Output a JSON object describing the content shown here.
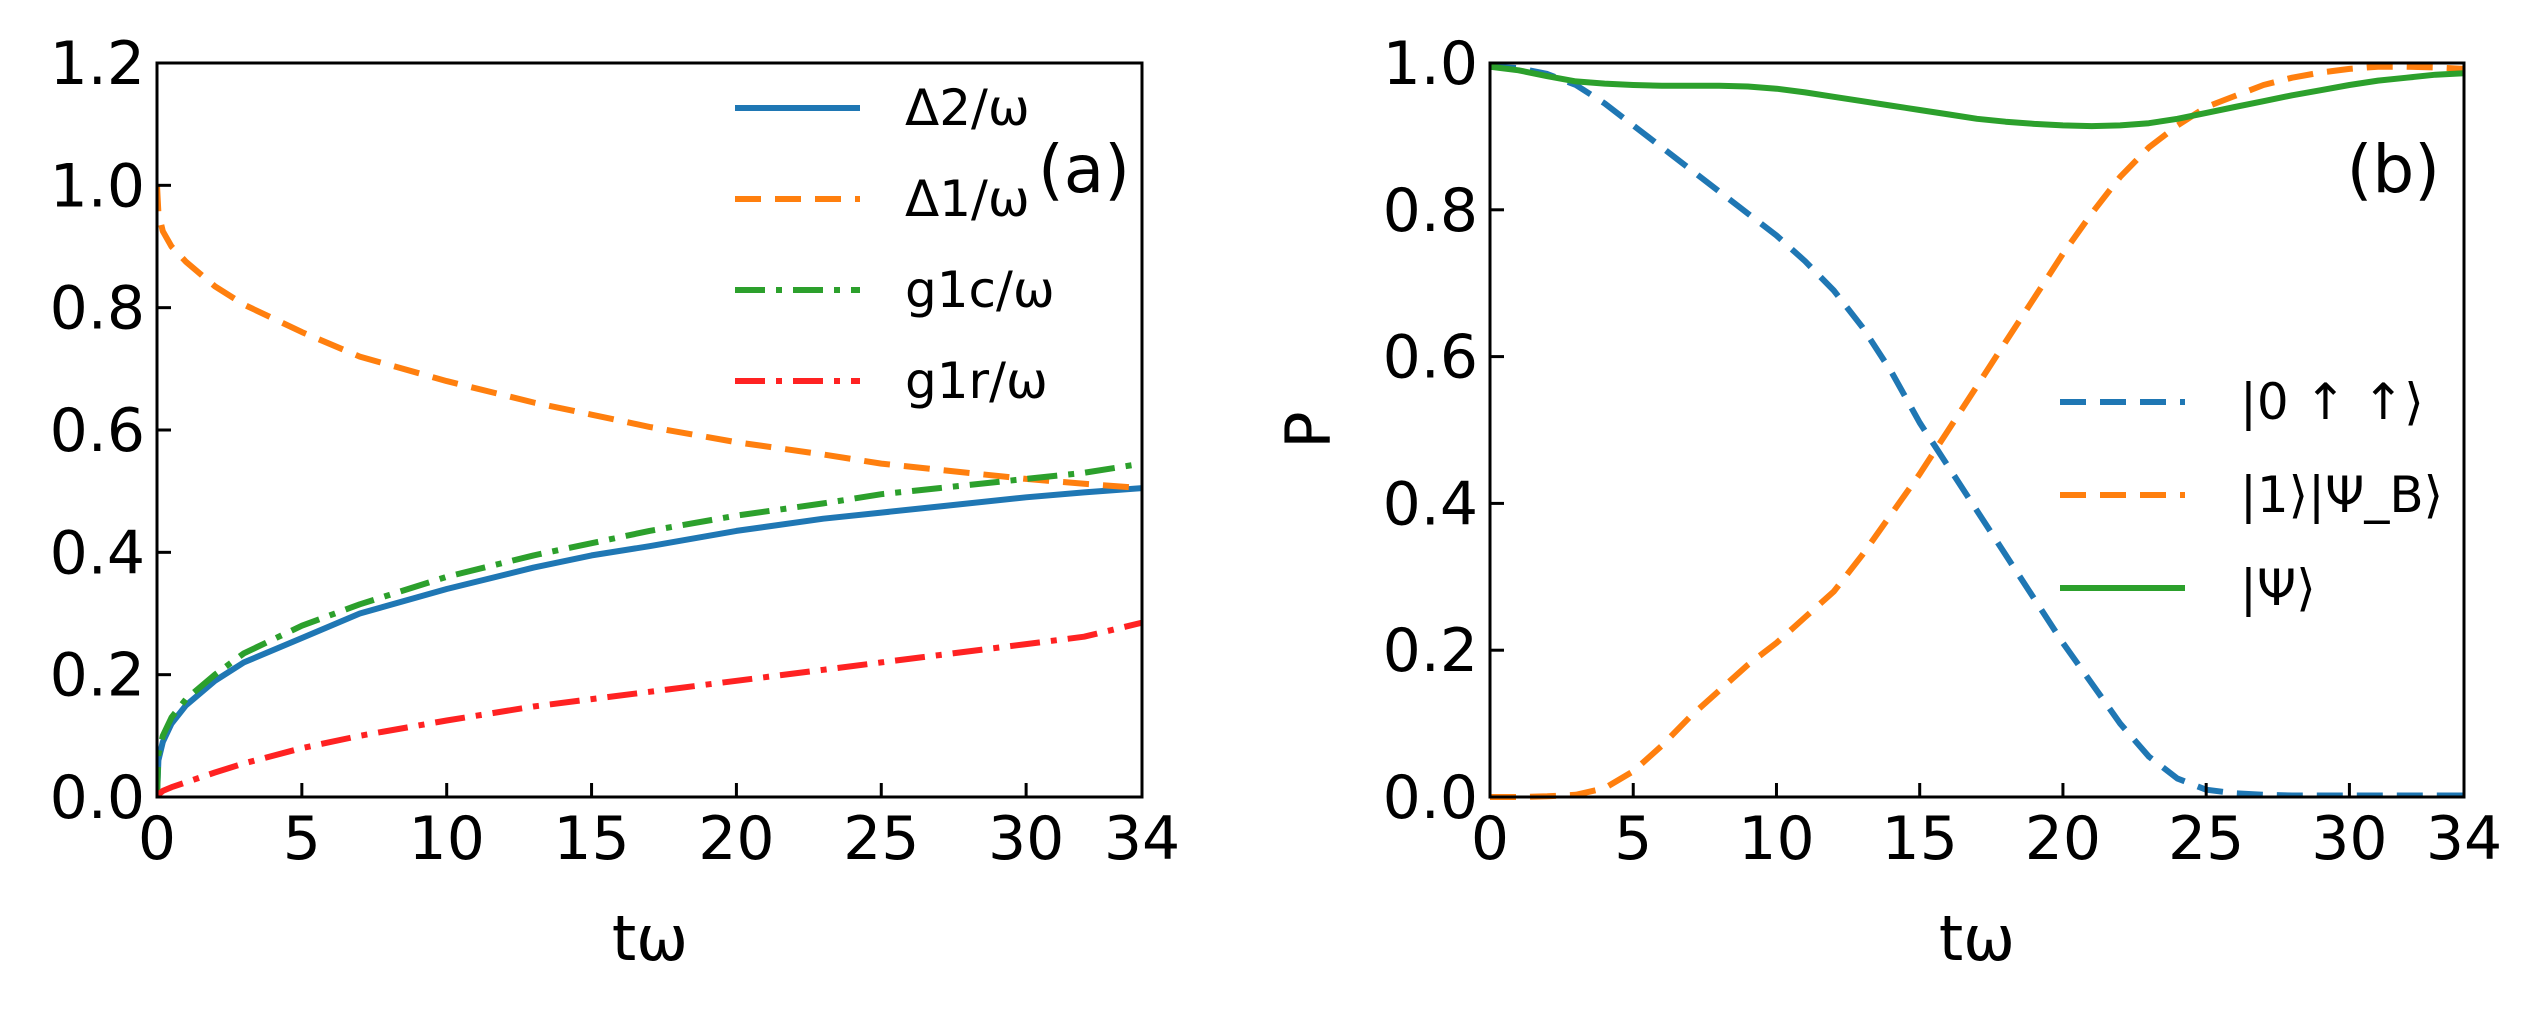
{
  "chart_data": [
    {
      "panel_label": "(a)",
      "type": "line",
      "xlabel": "tω",
      "ylabel": "",
      "xlim": [
        0,
        34
      ],
      "ylim": [
        0,
        1.2
      ],
      "xticks": [
        0,
        5,
        10,
        15,
        20,
        25,
        30,
        34
      ],
      "xtick_labels": [
        "0",
        "5",
        "10",
        "15",
        "20",
        "25",
        "30",
        "34"
      ],
      "yticks": [
        0,
        0.2,
        0.4,
        0.6,
        0.8,
        1.0,
        1.2
      ],
      "ytick_labels": [
        "0.0",
        "0.2",
        "0.4",
        "0.6",
        "0.8",
        "1.0",
        "1.2"
      ],
      "legend_position": "top-right",
      "x": [
        0,
        0.05,
        0.2,
        0.5,
        1,
        2,
        3,
        5,
        7,
        10,
        13,
        15,
        17,
        20,
        23,
        25,
        27,
        30,
        32,
        34
      ],
      "series": [
        {
          "name": "Δ2/ω",
          "color": "#1f77b4",
          "dash": "solid",
          "values": [
            0.0,
            0.06,
            0.09,
            0.12,
            0.15,
            0.19,
            0.22,
            0.26,
            0.3,
            0.34,
            0.375,
            0.395,
            0.41,
            0.435,
            0.455,
            0.465,
            0.475,
            0.49,
            0.498,
            0.505
          ]
        },
        {
          "name": "Δ1/ω",
          "color": "#ff7f0e",
          "dash": "dashed",
          "values": [
            1.0,
            0.955,
            0.925,
            0.9,
            0.875,
            0.835,
            0.805,
            0.76,
            0.72,
            0.68,
            0.645,
            0.625,
            0.605,
            0.58,
            0.56,
            0.545,
            0.535,
            0.52,
            0.512,
            0.505
          ]
        },
        {
          "name": "g1c/ω",
          "color": "#2ca02c",
          "dash": "dashdot",
          "values": [
            0.0,
            0.07,
            0.1,
            0.13,
            0.16,
            0.2,
            0.235,
            0.28,
            0.315,
            0.36,
            0.395,
            0.415,
            0.435,
            0.46,
            0.48,
            0.495,
            0.505,
            0.52,
            0.53,
            0.545
          ]
        },
        {
          "name": "g1r/ω",
          "color": "#ff2222",
          "dash": "dashdot",
          "values": [
            0.0,
            0.004,
            0.01,
            0.016,
            0.024,
            0.04,
            0.055,
            0.08,
            0.1,
            0.125,
            0.148,
            0.16,
            0.172,
            0.19,
            0.208,
            0.22,
            0.232,
            0.25,
            0.262,
            0.285
          ]
        }
      ]
    },
    {
      "panel_label": "(b)",
      "type": "line",
      "xlabel": "tω",
      "ylabel": "P",
      "xlim": [
        0,
        34
      ],
      "ylim": [
        0,
        1.0
      ],
      "xticks": [
        0,
        5,
        10,
        15,
        20,
        25,
        30,
        34
      ],
      "xtick_labels": [
        "0",
        "5",
        "10",
        "15",
        "20",
        "25",
        "30",
        "34"
      ],
      "yticks": [
        0,
        0.2,
        0.4,
        0.6,
        0.8,
        1.0
      ],
      "ytick_labels": [
        "0.0",
        "0.2",
        "0.4",
        "0.6",
        "0.8",
        "1.0"
      ],
      "legend_position": "center-right",
      "x": [
        0,
        1,
        2,
        3,
        4,
        5,
        6,
        7,
        8,
        9,
        10,
        11,
        12,
        13,
        14,
        15,
        16,
        17,
        18,
        19,
        20,
        21,
        22,
        23,
        24,
        25,
        26,
        27,
        28,
        29,
        30,
        31,
        32,
        33,
        34
      ],
      "series": [
        {
          "name": "|0 ↑ ↑⟩",
          "color": "#1f77b4",
          "dash": "dashed",
          "values": [
            0.995,
            0.993,
            0.985,
            0.97,
            0.945,
            0.915,
            0.885,
            0.855,
            0.825,
            0.795,
            0.765,
            0.73,
            0.69,
            0.64,
            0.58,
            0.51,
            0.45,
            0.39,
            0.33,
            0.27,
            0.21,
            0.155,
            0.1,
            0.055,
            0.025,
            0.01,
            0.005,
            0.003,
            0.002,
            0.002,
            0.002,
            0.002,
            0.002,
            0.002,
            0.002
          ]
        },
        {
          "name": "|1⟩|Ψ_B⟩",
          "color": "#ff7f0e",
          "dash": "dashed",
          "values": [
            0.0,
            0.0,
            0.001,
            0.003,
            0.012,
            0.035,
            0.07,
            0.11,
            0.145,
            0.18,
            0.21,
            0.245,
            0.28,
            0.33,
            0.385,
            0.44,
            0.5,
            0.56,
            0.62,
            0.68,
            0.74,
            0.795,
            0.845,
            0.885,
            0.915,
            0.94,
            0.955,
            0.97,
            0.98,
            0.987,
            0.992,
            0.995,
            0.995,
            0.994,
            0.992
          ]
        },
        {
          "name": "|Ψ⟩",
          "color": "#2ca02c",
          "dash": "solid",
          "values": [
            0.995,
            0.99,
            0.982,
            0.975,
            0.972,
            0.97,
            0.969,
            0.969,
            0.969,
            0.968,
            0.965,
            0.96,
            0.954,
            0.948,
            0.942,
            0.936,
            0.93,
            0.924,
            0.92,
            0.917,
            0.915,
            0.914,
            0.915,
            0.918,
            0.924,
            0.932,
            0.94,
            0.948,
            0.956,
            0.963,
            0.97,
            0.976,
            0.98,
            0.984,
            0.986
          ]
        }
      ]
    }
  ]
}
